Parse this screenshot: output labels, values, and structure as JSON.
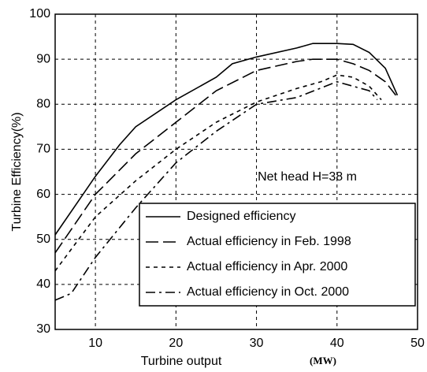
{
  "chart_data": {
    "type": "line",
    "xlabel": "Turbine output",
    "xunit": "(MW)",
    "ylabel": "Turbine Efficiency(%)",
    "annotation": "Net head H=38 m",
    "xlim": [
      5,
      50
    ],
    "xticks": [
      10,
      20,
      30,
      40,
      50
    ],
    "ylim": [
      30,
      100
    ],
    "yticks": [
      30,
      40,
      50,
      60,
      70,
      80,
      90,
      100
    ],
    "grid": true,
    "legend": "lower right",
    "series": [
      {
        "name": "Designed efficiency",
        "color": "#000000",
        "dash": "solid",
        "x": [
          5,
          10,
          13,
          15,
          20,
          25,
          27,
          30,
          35,
          37,
          40,
          42,
          44,
          46,
          47.5
        ],
        "values": [
          51,
          64,
          71,
          75,
          81,
          86,
          89,
          90.5,
          92.5,
          93.5,
          93.5,
          93.3,
          91.5,
          88,
          82
        ]
      },
      {
        "name": "Actual efficiency in Feb. 1998",
        "color": "#000000",
        "dash": "long",
        "x": [
          5,
          10,
          15,
          20,
          25,
          30,
          35,
          37,
          40,
          42,
          44,
          46,
          47.3
        ],
        "values": [
          47,
          60,
          69,
          76,
          83,
          87.5,
          89.5,
          90,
          90,
          89,
          87.5,
          85,
          82
        ]
      },
      {
        "name": "Actual efficiency in Apr. 2000",
        "color": "#000000",
        "dash": "short",
        "x": [
          5,
          10,
          15,
          20,
          25,
          30,
          35,
          38,
          40,
          42,
          44,
          45.5
        ],
        "values": [
          43,
          55,
          63,
          70,
          76,
          80.5,
          83.5,
          85,
          86.5,
          86,
          84,
          81
        ]
      },
      {
        "name": "Actual efficiency in Oct. 2000",
        "color": "#000000",
        "dash": "dashdot",
        "x": [
          5,
          7,
          10,
          15,
          20,
          25,
          30,
          35,
          40,
          42,
          44,
          45
        ],
        "values": [
          36.5,
          38,
          46,
          57,
          67,
          74,
          80,
          81.5,
          85,
          84,
          83,
          81
        ]
      }
    ]
  }
}
